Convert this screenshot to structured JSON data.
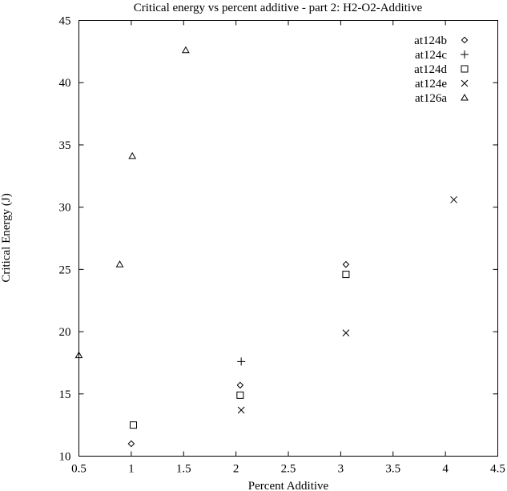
{
  "chart_data": {
    "type": "scatter",
    "title": "Critical energy vs percent additive - part 2: H2-O2-Additive",
    "xlabel": "Percent Additive",
    "ylabel": "Critical Energy (J)",
    "xlim": [
      0.5,
      4.5
    ],
    "ylim": [
      10,
      45
    ],
    "xticks": [
      "0.5",
      "1",
      "1.5",
      "2",
      "2.5",
      "3",
      "3.5",
      "4",
      "4.5"
    ],
    "yticks": [
      "10",
      "15",
      "20",
      "25",
      "30",
      "35",
      "40",
      "45"
    ],
    "grid": false,
    "legend_position": "top-right",
    "series": [
      {
        "name": "at124b",
        "marker": "diamond",
        "points": [
          [
            1.0,
            11.0
          ],
          [
            2.04,
            15.7
          ],
          [
            3.05,
            25.4
          ]
        ]
      },
      {
        "name": "at124c",
        "marker": "plus",
        "points": [
          [
            2.05,
            17.6
          ]
        ]
      },
      {
        "name": "at124d",
        "marker": "square",
        "points": [
          [
            1.02,
            12.5
          ],
          [
            2.04,
            14.9
          ],
          [
            3.05,
            24.6
          ]
        ]
      },
      {
        "name": "at124e",
        "marker": "cross",
        "points": [
          [
            2.05,
            13.7
          ],
          [
            3.05,
            19.9
          ],
          [
            4.08,
            30.6
          ]
        ]
      },
      {
        "name": "at126a",
        "marker": "triangle",
        "points": [
          [
            0.5,
            18.1
          ],
          [
            0.89,
            25.4
          ],
          [
            1.01,
            34.1
          ],
          [
            1.52,
            42.6
          ]
        ]
      }
    ]
  }
}
